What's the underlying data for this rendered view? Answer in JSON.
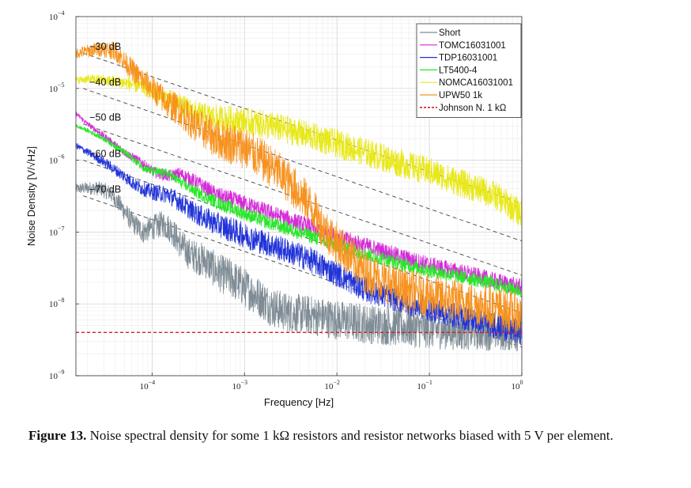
{
  "chart_data": {
    "type": "line",
    "xscale": "log",
    "yscale": "log",
    "xlim": [
      1.5e-05,
      1.0
    ],
    "ylim": [
      1e-09,
      0.0001
    ],
    "xlabel": "Frequency [Hz]",
    "ylabel": "Noise Density [V/√Hz]",
    "x_ticks": [
      {
        "base": "10",
        "exp": "−4",
        "value": 0.0001
      },
      {
        "base": "10",
        "exp": "−3",
        "value": 0.001
      },
      {
        "base": "10",
        "exp": "−2",
        "value": 0.01
      },
      {
        "base": "10",
        "exp": "−1",
        "value": 0.1
      },
      {
        "base": "10",
        "exp": "0",
        "value": 1.0
      }
    ],
    "y_ticks": [
      {
        "base": "10",
        "exp": "−4",
        "value": 0.0001
      },
      {
        "base": "10",
        "exp": "−5",
        "value": 1e-05
      },
      {
        "base": "10",
        "exp": "−6",
        "value": 1e-06
      },
      {
        "base": "10",
        "exp": "−7",
        "value": 1e-07
      },
      {
        "base": "10",
        "exp": "−8",
        "value": 1e-08
      },
      {
        "base": "10",
        "exp": "−9",
        "value": 1e-09
      }
    ],
    "grid": true,
    "legend_position": "top-right",
    "reference_lines": [
      {
        "label": "−30 dB",
        "x_start": 1.8e-05,
        "x_end": 1.0,
        "y_start": 3.1e-05,
        "y_end": 2.5e-07
      },
      {
        "label": "−40 dB",
        "x_start": 1.8e-05,
        "x_end": 1.0,
        "y_start": 1e-05,
        "y_end": 7.5e-08
      },
      {
        "label": "−50 dB",
        "x_start": 1.8e-05,
        "x_end": 1.0,
        "y_start": 3.2e-06,
        "y_end": 2.5e-08
      },
      {
        "label": "−60 dB",
        "x_start": 1.8e-05,
        "x_end": 1.0,
        "y_start": 1e-06,
        "y_end": 7.5e-09
      },
      {
        "label": "−70 dB",
        "x_start": 1.8e-05,
        "x_end": 1.0,
        "y_start": 3.2e-07,
        "y_end": 2.5e-09
      }
    ],
    "series": [
      {
        "name": "Short",
        "color": "#7f8c95",
        "points": [
          [
            1.5e-05,
            4e-07
          ],
          [
            2e-05,
            4.1e-07
          ],
          [
            2.8e-05,
            4e-07
          ],
          [
            3.5e-05,
            3.5e-07
          ],
          [
            4.5e-05,
            2.4e-07
          ],
          [
            6e-05,
            1.4e-07
          ],
          [
            8e-05,
            1e-07
          ],
          [
            0.0001,
            1.15e-07
          ],
          [
            0.00013,
            1.3e-07
          ],
          [
            0.00016,
            1.1e-07
          ],
          [
            0.0002,
            7e-08
          ],
          [
            0.00025,
            5e-08
          ],
          [
            0.0003,
            4.5e-08
          ],
          [
            0.0004,
            3.8e-08
          ],
          [
            0.0005,
            2.8e-08
          ],
          [
            0.0007,
            2.3e-08
          ],
          [
            0.001,
            1.7e-08
          ],
          [
            0.0015,
            1.2e-08
          ],
          [
            0.002,
            9e-09
          ],
          [
            0.003,
            7.5e-09
          ],
          [
            0.005,
            7e-09
          ],
          [
            0.007,
            6.5e-09
          ],
          [
            0.01,
            6e-09
          ],
          [
            0.02,
            5.3e-09
          ],
          [
            0.05,
            4.8e-09
          ],
          [
            0.1,
            4.5e-09
          ],
          [
            0.2,
            4.3e-09
          ],
          [
            0.5,
            4.2e-09
          ],
          [
            1.0,
            4.1e-09
          ]
        ],
        "noise": 0.28
      },
      {
        "name": "TOMC16031001",
        "color": "#d52ad8",
        "points": [
          [
            1.5e-05,
            4.5e-06
          ],
          [
            2e-05,
            3.2e-06
          ],
          [
            3e-05,
            2.2e-06
          ],
          [
            5e-05,
            1.3e-06
          ],
          [
            8e-05,
            9e-07
          ],
          [
            0.0001,
            7e-07
          ],
          [
            0.00015,
            6e-07
          ],
          [
            0.0002,
            6.5e-07
          ],
          [
            0.0003,
            5e-07
          ],
          [
            0.0005,
            3.3e-07
          ],
          [
            0.001,
            2.5e-07
          ],
          [
            0.002,
            1.8e-07
          ],
          [
            0.005,
            1.2e-07
          ],
          [
            0.01,
            8.5e-08
          ],
          [
            0.02,
            6.5e-08
          ],
          [
            0.05,
            4.5e-08
          ],
          [
            0.1,
            3.5e-08
          ],
          [
            0.3,
            2.5e-08
          ],
          [
            0.5,
            2.1e-08
          ],
          [
            1.0,
            1.7e-08
          ]
        ],
        "noise": 0.12
      },
      {
        "name": "TDP16031001",
        "color": "#2133d8",
        "points": [
          [
            1.5e-05,
            1.6e-06
          ],
          [
            2e-05,
            1.3e-06
          ],
          [
            3e-05,
            9.5e-07
          ],
          [
            5e-05,
            6e-07
          ],
          [
            7e-05,
            4.3e-07
          ],
          [
            0.0001,
            3.6e-07
          ],
          [
            0.00015,
            3.3e-07
          ],
          [
            0.0002,
            2.6e-07
          ],
          [
            0.0003,
            1.8e-07
          ],
          [
            0.0005,
            1.3e-07
          ],
          [
            0.001,
            9e-08
          ],
          [
            0.002,
            6.5e-08
          ],
          [
            0.005,
            4.2e-08
          ],
          [
            0.01,
            2.6e-08
          ],
          [
            0.02,
            1.6e-08
          ],
          [
            0.05,
            1.1e-08
          ],
          [
            0.1,
            8.5e-09
          ],
          [
            0.3,
            6e-09
          ],
          [
            0.5,
            5e-09
          ],
          [
            1.0,
            4e-09
          ]
        ],
        "noise": 0.18
      },
      {
        "name": "LT5400-4",
        "color": "#27e827",
        "points": [
          [
            1.5e-05,
            3e-06
          ],
          [
            2e-05,
            2.6e-06
          ],
          [
            3e-05,
            2e-06
          ],
          [
            5e-05,
            1.3e-06
          ],
          [
            8e-05,
            8e-07
          ],
          [
            0.0001,
            7e-07
          ],
          [
            0.00015,
            6.5e-07
          ],
          [
            0.0002,
            5e-07
          ],
          [
            0.0003,
            3.6e-07
          ],
          [
            0.0005,
            2.6e-07
          ],
          [
            0.001,
            1.8e-07
          ],
          [
            0.002,
            1.3e-07
          ],
          [
            0.005,
            9e-08
          ],
          [
            0.01,
            6.5e-08
          ],
          [
            0.02,
            5e-08
          ],
          [
            0.05,
            3.6e-08
          ],
          [
            0.1,
            2.9e-08
          ],
          [
            0.3,
            2.2e-08
          ],
          [
            0.5,
            1.9e-08
          ],
          [
            1.0,
            1.5e-08
          ]
        ],
        "noise": 0.1
      },
      {
        "name": "NOMCA16031001",
        "color": "#e8e81a",
        "points": [
          [
            1.5e-05,
            1.3e-05
          ],
          [
            2e-05,
            1.35e-05
          ],
          [
            3e-05,
            1.3e-05
          ],
          [
            5e-05,
            1.2e-05
          ],
          [
            8e-05,
            1.05e-05
          ],
          [
            0.0001,
            9e-06
          ],
          [
            0.0002,
            6e-06
          ],
          [
            0.0003,
            4.5e-06
          ],
          [
            0.0005,
            3.8e-06
          ],
          [
            0.001,
            3.5e-06
          ],
          [
            0.002,
            3e-06
          ],
          [
            0.005,
            2.2e-06
          ],
          [
            0.01,
            1.7e-06
          ],
          [
            0.02,
            1.3e-06
          ],
          [
            0.05,
            9e-07
          ],
          [
            0.1,
            7e-07
          ],
          [
            0.2,
            5e-07
          ],
          [
            0.5,
            3.3e-07
          ],
          [
            1.0,
            1.8e-07
          ]
        ],
        "noise": 0.2
      },
      {
        "name": "UPW50 1k",
        "color": "#f7921e",
        "points": [
          [
            1.5e-05,
            3.1e-05
          ],
          [
            2e-05,
            3.3e-05
          ],
          [
            3e-05,
            3.6e-05
          ],
          [
            4e-05,
            3.3e-05
          ],
          [
            5e-05,
            2.4e-05
          ],
          [
            7e-05,
            1.5e-05
          ],
          [
            0.0001,
            1e-05
          ],
          [
            0.00015,
            6e-06
          ],
          [
            0.0002,
            5e-06
          ],
          [
            0.0003,
            3e-06
          ],
          [
            0.0005,
            2e-06
          ],
          [
            0.001,
            1.5e-06
          ],
          [
            0.002,
            8e-07
          ],
          [
            0.003,
            5e-07
          ],
          [
            0.005,
            2.5e-07
          ],
          [
            0.007,
            1.2e-07
          ],
          [
            0.01,
            7e-08
          ],
          [
            0.02,
            2.8e-08
          ],
          [
            0.05,
            1.6e-08
          ],
          [
            0.1,
            1.3e-08
          ],
          [
            0.3,
            1e-08
          ],
          [
            0.5,
            9e-09
          ],
          [
            1.0,
            7e-09
          ]
        ],
        "noise": 0.3
      },
      {
        "name": "Johnson N. 1 kΩ",
        "color": "#d62020",
        "dashed": true,
        "points": [
          [
            1.5e-05,
            4e-09
          ],
          [
            1.0,
            4e-09
          ]
        ],
        "noise": 0
      }
    ]
  },
  "caption": {
    "label": "Figure 13.",
    "text": "Noise spectral density for some 1 kΩ resistors and resistor networks biased with 5 V per element."
  }
}
